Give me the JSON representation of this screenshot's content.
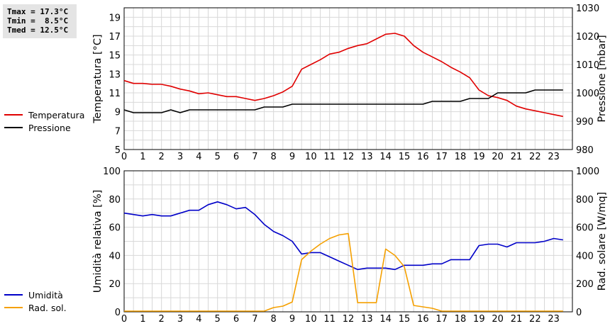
{
  "stats": {
    "tmax": "Tmax = 17.3°C",
    "tmin": "Tmin =  8.5°C",
    "tmed": "Tmed = 12.5°C"
  },
  "legend_top": [
    {
      "label": "Temperatura",
      "color": "#e00000"
    },
    {
      "label": "Pressione",
      "color": "#000000"
    }
  ],
  "legend_bottom": [
    {
      "label": "Umidità",
      "color": "#0000c8"
    },
    {
      "label": "Rad. sol.",
      "color": "#f5a000"
    }
  ],
  "chart_data": [
    {
      "type": "line",
      "ylabel": "Temperatura [°C]",
      "ylabel_right": "Pressione [mbar]",
      "xlim": [
        0,
        24
      ],
      "ylim": [
        5,
        20
      ],
      "ylim_right": [
        980,
        1030
      ],
      "x_ticks": [
        0,
        1,
        2,
        3,
        4,
        5,
        6,
        7,
        8,
        9,
        10,
        11,
        12,
        13,
        14,
        15,
        16,
        17,
        18,
        19,
        20,
        21,
        22,
        23
      ],
      "y_ticks": [
        5,
        7,
        9,
        11,
        13,
        15,
        17,
        19
      ],
      "y_ticks_right": [
        980,
        990,
        1000,
        1010,
        1020,
        1030
      ],
      "grid": true,
      "series": [
        {
          "name": "Temperatura",
          "color": "#e00000",
          "axis": "left",
          "x": [
            0,
            0.5,
            1,
            1.5,
            2,
            2.5,
            3,
            3.5,
            4,
            4.5,
            5,
            5.5,
            6,
            6.5,
            7,
            7.5,
            8,
            8.5,
            9,
            9.5,
            10,
            10.5,
            11,
            11.5,
            12,
            12.5,
            13,
            13.5,
            14,
            14.5,
            15,
            15.5,
            16,
            16.5,
            17,
            17.5,
            18,
            18.5,
            19,
            19.5,
            20,
            20.5,
            21,
            21.5,
            22,
            22.5,
            23,
            23.5
          ],
          "y": [
            12.3,
            12.0,
            12.0,
            11.9,
            11.9,
            11.7,
            11.4,
            11.2,
            10.9,
            11.0,
            10.8,
            10.6,
            10.6,
            10.4,
            10.2,
            10.4,
            10.7,
            11.1,
            11.7,
            13.5,
            14.0,
            14.5,
            15.1,
            15.3,
            15.7,
            16.0,
            16.2,
            16.7,
            17.2,
            17.3,
            17.0,
            16.0,
            15.3,
            14.8,
            14.3,
            13.7,
            13.2,
            12.6,
            11.3,
            10.7,
            10.5,
            10.2,
            9.6,
            9.3,
            9.1,
            8.9,
            8.7,
            8.5
          ]
        },
        {
          "name": "Pressione",
          "color": "#000000",
          "axis": "right",
          "x": [
            0,
            0.5,
            1,
            1.5,
            2,
            2.5,
            3,
            3.5,
            4,
            4.5,
            5,
            5.5,
            6,
            6.5,
            7,
            7.5,
            8,
            8.5,
            9,
            9.5,
            10,
            10.5,
            11,
            11.5,
            12,
            12.5,
            13,
            13.5,
            14,
            14.5,
            15,
            15.5,
            16,
            16.5,
            17,
            17.5,
            18,
            18.5,
            19,
            19.5,
            20,
            20.5,
            21,
            21.5,
            22,
            22.5,
            23,
            23.5
          ],
          "y": [
            994,
            993,
            993,
            993,
            993,
            994,
            993,
            994,
            994,
            994,
            994,
            994,
            994,
            994,
            994,
            995,
            995,
            995,
            996,
            996,
            996,
            996,
            996,
            996,
            996,
            996,
            996,
            996,
            996,
            996,
            996,
            996,
            996,
            997,
            997,
            997,
            997,
            998,
            998,
            998,
            1000,
            1000,
            1000,
            1000,
            1001,
            1001,
            1001,
            1001
          ]
        }
      ]
    },
    {
      "type": "line",
      "ylabel": "Umidità relativa [%]",
      "ylabel_right": "Rad. solare [W/mq]",
      "xlim": [
        0,
        24
      ],
      "ylim": [
        0,
        100
      ],
      "ylim_right": [
        0,
        1000
      ],
      "x_ticks": [
        0,
        1,
        2,
        3,
        4,
        5,
        6,
        7,
        8,
        9,
        10,
        11,
        12,
        13,
        14,
        15,
        16,
        17,
        18,
        19,
        20,
        21,
        22,
        23
      ],
      "y_ticks": [
        0,
        20,
        40,
        60,
        80,
        100
      ],
      "y_ticks_right": [
        0,
        200,
        400,
        600,
        800,
        1000
      ],
      "grid": true,
      "series": [
        {
          "name": "Umidità",
          "color": "#0000c8",
          "axis": "left",
          "x": [
            0,
            0.5,
            1,
            1.5,
            2,
            2.5,
            3,
            3.5,
            4,
            4.5,
            5,
            5.5,
            6,
            6.5,
            7,
            7.5,
            8,
            8.5,
            9,
            9.5,
            10,
            10.5,
            11,
            11.5,
            12,
            12.5,
            13,
            13.5,
            14,
            14.5,
            15,
            15.5,
            16,
            16.5,
            17,
            17.5,
            18,
            18.5,
            19,
            19.5,
            20,
            20.5,
            21,
            21.5,
            22,
            22.5,
            23,
            23.5
          ],
          "y": [
            70,
            69,
            68,
            69,
            68,
            68,
            70,
            72,
            72,
            76,
            78,
            76,
            73,
            74,
            69,
            62,
            57,
            54,
            50,
            41,
            42,
            42,
            39,
            36,
            33,
            30,
            31,
            31,
            31,
            30,
            33,
            33,
            33,
            34,
            34,
            37,
            37,
            37,
            47,
            48,
            48,
            46,
            49,
            49,
            49,
            50,
            52,
            51
          ]
        },
        {
          "name": "Rad. sol.",
          "color": "#f5a000",
          "axis": "right",
          "x": [
            0,
            7.5,
            8,
            8.5,
            9,
            9.5,
            10,
            10.5,
            11,
            11.5,
            12,
            12.5,
            13,
            13.5,
            14,
            14.5,
            15,
            15.5,
            16,
            16.5,
            17,
            23.5
          ],
          "y": [
            5,
            5,
            30,
            40,
            70,
            370,
            430,
            480,
            520,
            545,
            555,
            65,
            65,
            65,
            445,
            400,
            320,
            45,
            35,
            25,
            5,
            5
          ]
        }
      ]
    }
  ]
}
